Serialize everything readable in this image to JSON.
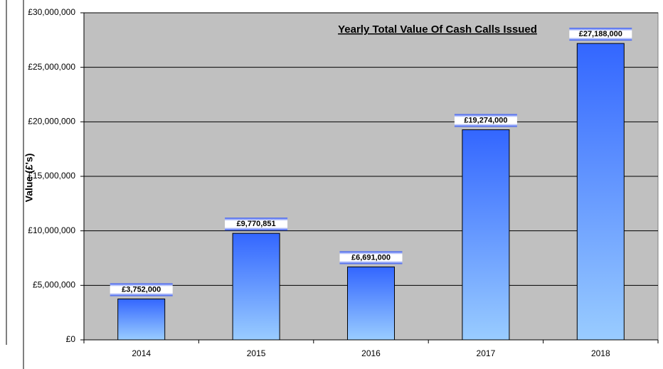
{
  "chart_data": {
    "type": "bar",
    "title": "Yearly Total Value Of Cash Calls Issued",
    "y_label": "Value (£'s)",
    "categories": [
      "2014",
      "2015",
      "2016",
      "2017",
      "2018"
    ],
    "values": [
      3752000,
      9770851,
      6691000,
      19274000,
      27188000
    ],
    "value_labels": [
      "£3,752,000",
      "£9,770,851",
      "£6,691,000",
      "£19,274,000",
      "£27,188,000"
    ],
    "color": "#3366ff",
    "ylim": [
      0,
      30000000
    ],
    "yticks": [
      {
        "value": 0,
        "label": "£0"
      },
      {
        "value": 5000000,
        "label": "£5,000,000"
      },
      {
        "value": 10000000,
        "label": "£10,000,000"
      },
      {
        "value": 15000000,
        "label": "£15,000,000"
      },
      {
        "value": 20000000,
        "label": "£20,000,000"
      },
      {
        "value": 25000000,
        "label": "£25,000,000"
      },
      {
        "value": 30000000,
        "label": "£30,000,000"
      }
    ],
    "grid": true
  }
}
